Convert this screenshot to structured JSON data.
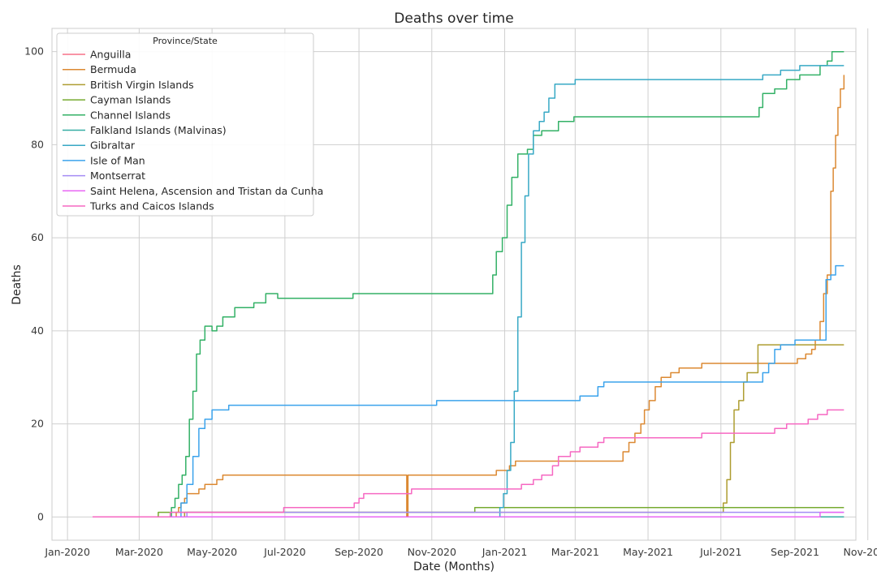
{
  "chart_data": {
    "type": "line",
    "title": "Deaths over time",
    "xlabel": "Date (Months)",
    "ylabel": "Deaths",
    "xlim": [
      "2019-12-19",
      "2021-10-22"
    ],
    "ylim": [
      -5,
      105
    ],
    "grid": true,
    "legend_title": "Province/State",
    "legend_position": "top-left",
    "x_ticks": [
      {
        "date": "2020-01-01",
        "label": "Jan-2020"
      },
      {
        "date": "2020-03-01",
        "label": "Mar-2020"
      },
      {
        "date": "2020-05-01",
        "label": "May-2020"
      },
      {
        "date": "2020-07-01",
        "label": "Jul-2020"
      },
      {
        "date": "2020-09-01",
        "label": "Sep-2020"
      },
      {
        "date": "2020-11-01",
        "label": "Nov-2020"
      },
      {
        "date": "2021-01-01",
        "label": "Jan-2021"
      },
      {
        "date": "2021-03-01",
        "label": "Mar-2021"
      },
      {
        "date": "2021-05-01",
        "label": "May-2021"
      },
      {
        "date": "2021-07-01",
        "label": "Jul-2021"
      },
      {
        "date": "2021-09-01",
        "label": "Sep-2021"
      },
      {
        "date": "2021-11-01",
        "label": "Nov-2021"
      }
    ],
    "y_ticks": [
      0,
      20,
      40,
      60,
      80,
      100
    ],
    "series": [
      {
        "name": "Anguilla",
        "color": "#f77189",
        "points": [
          [
            "2020-01-22",
            0
          ],
          [
            "2021-10-12",
            0
          ]
        ]
      },
      {
        "name": "Bermuda",
        "color": "#dc8932",
        "points": [
          [
            "2020-01-22",
            0
          ],
          [
            "2020-03-30",
            0
          ],
          [
            "2020-04-01",
            1
          ],
          [
            "2020-04-03",
            2
          ],
          [
            "2020-04-05",
            3
          ],
          [
            "2020-04-08",
            4
          ],
          [
            "2020-04-10",
            5
          ],
          [
            "2020-04-20",
            6
          ],
          [
            "2020-04-25",
            7
          ],
          [
            "2020-05-05",
            8
          ],
          [
            "2020-05-10",
            9
          ],
          [
            "2020-10-10",
            9
          ],
          [
            "2020-10-11",
            0
          ],
          [
            "2020-10-12",
            9
          ],
          [
            "2020-12-20",
            9
          ],
          [
            "2020-12-25",
            10
          ],
          [
            "2021-01-05",
            11
          ],
          [
            "2021-01-10",
            12
          ],
          [
            "2021-04-05",
            12
          ],
          [
            "2021-04-10",
            14
          ],
          [
            "2021-04-15",
            16
          ],
          [
            "2021-04-20",
            18
          ],
          [
            "2021-04-25",
            20
          ],
          [
            "2021-04-28",
            23
          ],
          [
            "2021-05-02",
            25
          ],
          [
            "2021-05-07",
            28
          ],
          [
            "2021-05-12",
            30
          ],
          [
            "2021-05-20",
            31
          ],
          [
            "2021-05-27",
            32
          ],
          [
            "2021-06-10",
            32
          ],
          [
            "2021-06-15",
            33
          ],
          [
            "2021-08-31",
            33
          ],
          [
            "2021-09-03",
            34
          ],
          [
            "2021-09-10",
            35
          ],
          [
            "2021-09-15",
            36
          ],
          [
            "2021-09-18",
            38
          ],
          [
            "2021-09-22",
            42
          ],
          [
            "2021-09-25",
            48
          ],
          [
            "2021-09-28",
            52
          ],
          [
            "2021-10-01",
            70
          ],
          [
            "2021-10-03",
            75
          ],
          [
            "2021-10-05",
            82
          ],
          [
            "2021-10-07",
            88
          ],
          [
            "2021-10-09",
            92
          ],
          [
            "2021-10-12",
            95
          ]
        ]
      },
      {
        "name": "British Virgin Islands",
        "color": "#ae9d31",
        "points": [
          [
            "2020-01-22",
            0
          ],
          [
            "2020-04-05",
            0
          ],
          [
            "2020-04-08",
            1
          ],
          [
            "2021-07-01",
            1
          ],
          [
            "2021-07-03",
            3
          ],
          [
            "2021-07-06",
            8
          ],
          [
            "2021-07-09",
            16
          ],
          [
            "2021-07-12",
            23
          ],
          [
            "2021-07-16",
            25
          ],
          [
            "2021-07-20",
            29
          ],
          [
            "2021-07-23",
            31
          ],
          [
            "2021-08-01",
            37
          ],
          [
            "2021-10-12",
            37
          ]
        ]
      },
      {
        "name": "Cayman Islands",
        "color": "#77ab31",
        "points": [
          [
            "2020-01-22",
            0
          ],
          [
            "2020-03-15",
            0
          ],
          [
            "2020-03-17",
            1
          ],
          [
            "2020-12-05",
            1
          ],
          [
            "2020-12-07",
            2
          ],
          [
            "2021-10-12",
            2
          ]
        ]
      },
      {
        "name": "Channel Islands",
        "color": "#33b166",
        "points": [
          [
            "2020-01-22",
            0
          ],
          [
            "2020-03-25",
            0
          ],
          [
            "2020-03-28",
            2
          ],
          [
            "2020-03-31",
            4
          ],
          [
            "2020-04-03",
            7
          ],
          [
            "2020-04-06",
            9
          ],
          [
            "2020-04-09",
            13
          ],
          [
            "2020-04-12",
            21
          ],
          [
            "2020-04-15",
            27
          ],
          [
            "2020-04-18",
            35
          ],
          [
            "2020-04-21",
            38
          ],
          [
            "2020-04-25",
            41
          ],
          [
            "2020-05-01",
            40
          ],
          [
            "2020-05-05",
            41
          ],
          [
            "2020-05-10",
            43
          ],
          [
            "2020-05-20",
            45
          ],
          [
            "2020-06-05",
            46
          ],
          [
            "2020-06-15",
            48
          ],
          [
            "2020-06-25",
            47
          ],
          [
            "2020-08-25",
            47
          ],
          [
            "2020-08-27",
            48
          ],
          [
            "2020-12-20",
            48
          ],
          [
            "2020-12-22",
            52
          ],
          [
            "2020-12-25",
            57
          ],
          [
            "2020-12-30",
            60
          ],
          [
            "2021-01-03",
            67
          ],
          [
            "2021-01-07",
            73
          ],
          [
            "2021-01-12",
            78
          ],
          [
            "2021-01-20",
            79
          ],
          [
            "2021-01-25",
            82
          ],
          [
            "2021-02-01",
            83
          ],
          [
            "2021-02-15",
            85
          ],
          [
            "2021-02-28",
            86
          ],
          [
            "2021-07-30",
            86
          ],
          [
            "2021-08-02",
            88
          ],
          [
            "2021-08-05",
            91
          ],
          [
            "2021-08-15",
            92
          ],
          [
            "2021-08-25",
            94
          ],
          [
            "2021-09-05",
            95
          ],
          [
            "2021-09-22",
            97
          ],
          [
            "2021-09-28",
            98
          ],
          [
            "2021-10-02",
            100
          ],
          [
            "2021-10-12",
            100
          ]
        ]
      },
      {
        "name": "Falkland Islands (Malvinas)",
        "color": "#36ada4",
        "points": [
          [
            "2020-01-22",
            0
          ],
          [
            "2021-10-12",
            0
          ]
        ]
      },
      {
        "name": "Gibraltar",
        "color": "#38a9c5",
        "points": [
          [
            "2020-01-22",
            0
          ],
          [
            "2020-12-25",
            0
          ],
          [
            "2020-12-28",
            2
          ],
          [
            "2020-12-31",
            5
          ],
          [
            "2021-01-03",
            10
          ],
          [
            "2021-01-06",
            16
          ],
          [
            "2021-01-09",
            27
          ],
          [
            "2021-01-12",
            43
          ],
          [
            "2021-01-15",
            59
          ],
          [
            "2021-01-18",
            69
          ],
          [
            "2021-01-21",
            78
          ],
          [
            "2021-01-25",
            83
          ],
          [
            "2021-01-30",
            85
          ],
          [
            "2021-02-03",
            87
          ],
          [
            "2021-02-07",
            90
          ],
          [
            "2021-02-12",
            93
          ],
          [
            "2021-03-01",
            94
          ],
          [
            "2021-07-30",
            94
          ],
          [
            "2021-08-05",
            95
          ],
          [
            "2021-08-20",
            96
          ],
          [
            "2021-09-05",
            97
          ],
          [
            "2021-10-12",
            97
          ]
        ]
      },
      {
        "name": "Isle of Man",
        "color": "#3ba3ec",
        "points": [
          [
            "2020-01-22",
            0
          ],
          [
            "2020-04-01",
            0
          ],
          [
            "2020-04-05",
            3
          ],
          [
            "2020-04-10",
            7
          ],
          [
            "2020-04-15",
            13
          ],
          [
            "2020-04-20",
            19
          ],
          [
            "2020-04-25",
            21
          ],
          [
            "2020-05-01",
            23
          ],
          [
            "2020-05-15",
            24
          ],
          [
            "2020-11-01",
            24
          ],
          [
            "2020-11-05",
            25
          ],
          [
            "2021-02-28",
            25
          ],
          [
            "2021-03-05",
            26
          ],
          [
            "2021-03-20",
            28
          ],
          [
            "2021-03-25",
            29
          ],
          [
            "2021-07-30",
            29
          ],
          [
            "2021-08-05",
            31
          ],
          [
            "2021-08-10",
            33
          ],
          [
            "2021-08-15",
            36
          ],
          [
            "2021-08-20",
            37
          ],
          [
            "2021-09-01",
            38
          ],
          [
            "2021-09-25",
            38
          ],
          [
            "2021-09-27",
            51
          ],
          [
            "2021-10-01",
            52
          ],
          [
            "2021-10-05",
            54
          ],
          [
            "2021-10-12",
            54
          ]
        ]
      },
      {
        "name": "Montserrat",
        "color": "#a48cf4",
        "points": [
          [
            "2020-01-22",
            0
          ],
          [
            "2020-04-08",
            0
          ],
          [
            "2020-04-10",
            1
          ],
          [
            "2021-10-12",
            1
          ]
        ]
      },
      {
        "name": "Saint Helena, Ascension and Tristan da Cunha",
        "color": "#e866f4",
        "points": [
          [
            "2020-01-22",
            0
          ],
          [
            "2021-09-20",
            0
          ],
          [
            "2021-09-22",
            1
          ],
          [
            "2021-10-12",
            1
          ]
        ]
      },
      {
        "name": "Turks and Caicos Islands",
        "color": "#f668c2",
        "points": [
          [
            "2020-01-22",
            0
          ],
          [
            "2020-03-25",
            0
          ],
          [
            "2020-03-27",
            1
          ],
          [
            "2020-06-28",
            1
          ],
          [
            "2020-06-30",
            2
          ],
          [
            "2020-08-25",
            2
          ],
          [
            "2020-08-28",
            3
          ],
          [
            "2020-09-01",
            4
          ],
          [
            "2020-09-05",
            5
          ],
          [
            "2020-10-15",
            6
          ],
          [
            "2021-01-10",
            6
          ],
          [
            "2021-01-15",
            7
          ],
          [
            "2021-01-25",
            8
          ],
          [
            "2021-02-01",
            9
          ],
          [
            "2021-02-10",
            11
          ],
          [
            "2021-02-15",
            13
          ],
          [
            "2021-02-25",
            14
          ],
          [
            "2021-03-05",
            15
          ],
          [
            "2021-03-20",
            16
          ],
          [
            "2021-03-25",
            17
          ],
          [
            "2021-06-10",
            17
          ],
          [
            "2021-06-15",
            18
          ],
          [
            "2021-08-10",
            18
          ],
          [
            "2021-08-15",
            19
          ],
          [
            "2021-08-25",
            20
          ],
          [
            "2021-09-12",
            21
          ],
          [
            "2021-09-20",
            22
          ],
          [
            "2021-09-28",
            23
          ],
          [
            "2021-10-12",
            23
          ]
        ]
      }
    ]
  }
}
